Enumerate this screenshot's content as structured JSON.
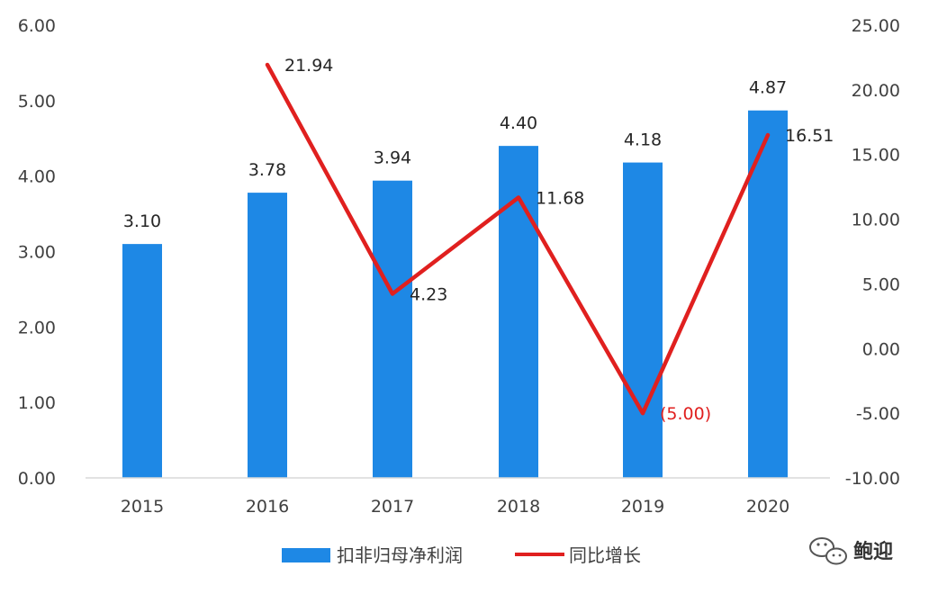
{
  "chart_data": {
    "type": "bar+line",
    "categories": [
      "2015",
      "2016",
      "2017",
      "2018",
      "2019",
      "2020"
    ],
    "series": [
      {
        "name": "扣非归母净利润",
        "type": "bar",
        "axis": "left",
        "values": [
          3.1,
          3.78,
          3.94,
          4.4,
          4.18,
          4.87
        ],
        "labels": [
          "3.10",
          "3.78",
          "3.94",
          "4.40",
          "4.18",
          "4.87"
        ],
        "color": "#1e88e5"
      },
      {
        "name": "同比增长",
        "type": "line",
        "axis": "right",
        "values": [
          null,
          21.94,
          4.23,
          11.68,
          -5.0,
          16.51
        ],
        "labels": [
          "",
          "21.94",
          "4.23",
          "11.68",
          "(5.00)",
          "16.51"
        ],
        "color": "#e0201f",
        "negative_label_color": "#e0201f"
      }
    ],
    "y_left": {
      "ylim": [
        0,
        6
      ],
      "ticks": [
        "0.00",
        "1.00",
        "2.00",
        "3.00",
        "4.00",
        "5.00",
        "6.00"
      ]
    },
    "y_right": {
      "ylim": [
        -10,
        25
      ],
      "ticks": [
        "-10.00",
        "-5.00",
        "0.00",
        "5.00",
        "10.00",
        "15.00",
        "20.00",
        "25.00"
      ]
    },
    "grid": false,
    "legend": "bottom"
  },
  "watermark": {
    "text": "鲍迎",
    "icon": "wechat-icon"
  }
}
